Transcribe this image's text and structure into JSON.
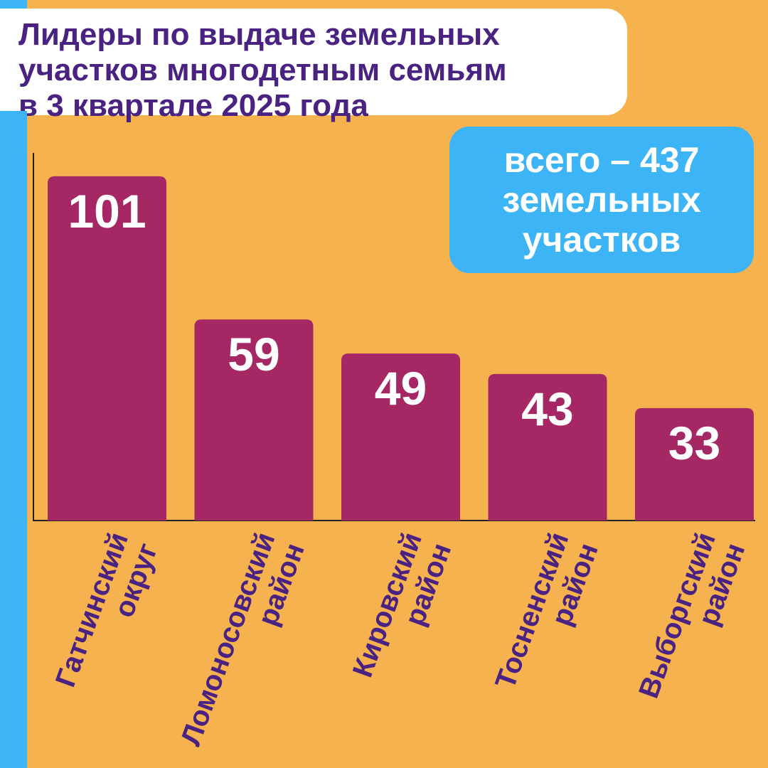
{
  "title_lines": [
    "Лидеры по выдаче земельных",
    "участков многодетным семьям",
    "в 3 квартале 2025 года"
  ],
  "total_lines": [
    "всего – 437",
    "земельных",
    "участков"
  ],
  "colors": {
    "background": "#f5b24e",
    "accent": "#3cb4f5",
    "bar": "#a52865",
    "title_text": "#4a2382",
    "axis": "#222222"
  },
  "chart_data": {
    "type": "bar",
    "title": "Лидеры по выдаче земельных участков многодетным семьям в 3 квартале 2025 года",
    "categories": [
      [
        "Гатчинский",
        "округ"
      ],
      [
        "Ломоносовский",
        "район"
      ],
      [
        "Кировский",
        "район"
      ],
      [
        "Тосненский",
        "район"
      ],
      [
        "Выборгский",
        "район"
      ]
    ],
    "values": [
      101,
      59,
      49,
      43,
      33
    ],
    "ylim": [
      0,
      111
    ],
    "grid": false,
    "legend": "none"
  }
}
